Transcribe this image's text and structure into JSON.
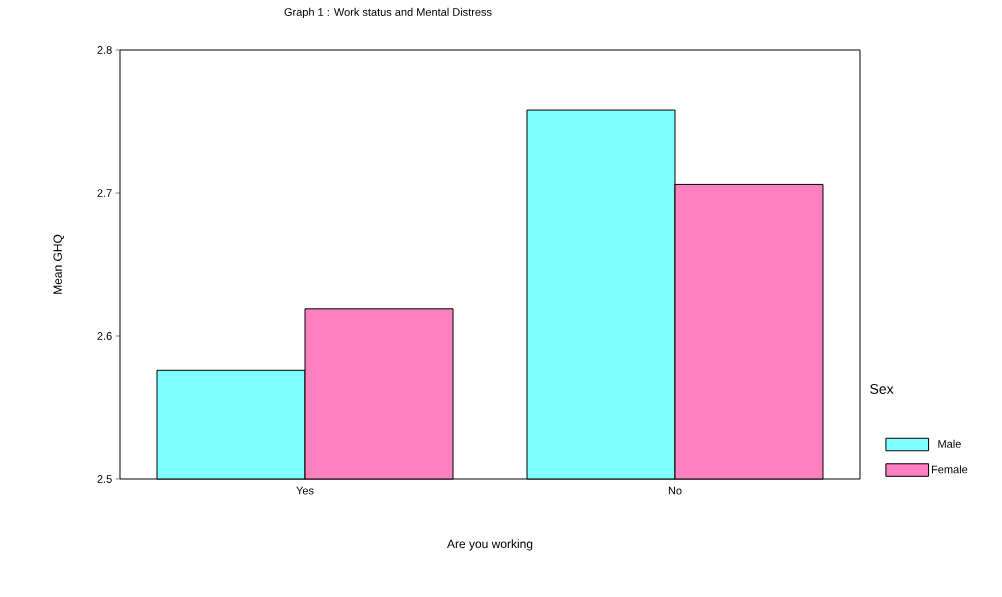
{
  "chart_data": {
    "type": "bar",
    "title": "Graph 1 : Work status and Mental Distress",
    "xlabel": "Are you working",
    "ylabel": "Mean GHQ",
    "legend_title": "Sex",
    "legend": "right",
    "categories": [
      "Yes",
      "No"
    ],
    "series": [
      {
        "name": "Male",
        "color": "#80ffff",
        "values": [
          2.576,
          2.758
        ]
      },
      {
        "name": "Female",
        "color": "#ff80c0",
        "values": [
          2.619,
          2.706
        ]
      }
    ],
    "ylim": [
      2.5,
      2.8
    ],
    "yticks": [
      2.5,
      2.6,
      2.7,
      2.8
    ]
  }
}
